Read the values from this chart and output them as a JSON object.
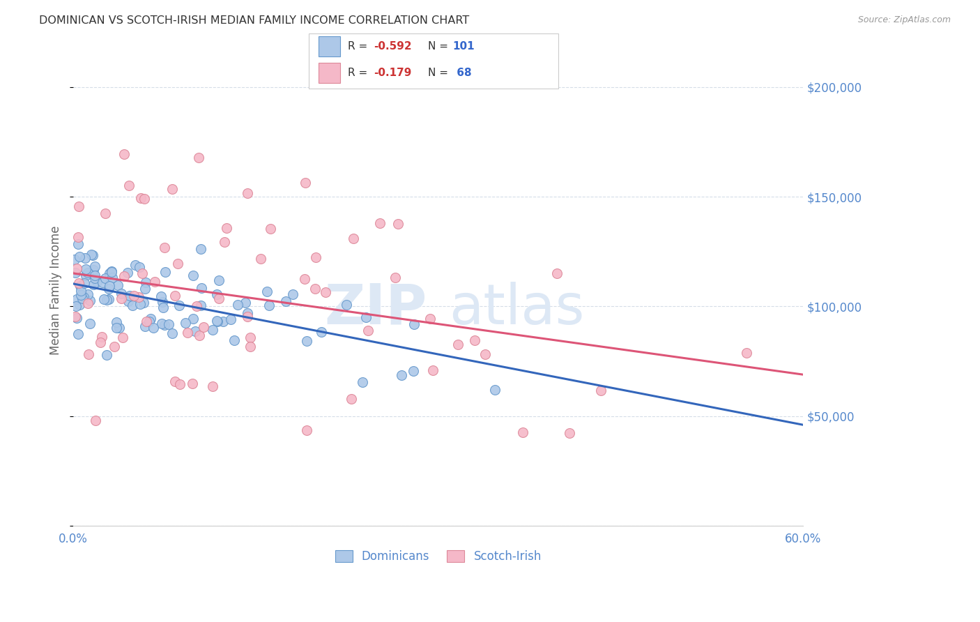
{
  "title": "DOMINICAN VS SCOTCH-IRISH MEDIAN FAMILY INCOME CORRELATION CHART",
  "source": "Source: ZipAtlas.com",
  "ylabel": "Median Family Income",
  "xlim": [
    0.0,
    0.6
  ],
  "ylim": [
    0,
    215000
  ],
  "series1_label": "Dominicans",
  "series1_fill_color": "#adc8e8",
  "series1_edge_color": "#6699cc",
  "series1_line_color": "#3366bb",
  "series1_R": -0.592,
  "series1_N": 101,
  "series1_intercept": 110000,
  "series1_slope": -110000,
  "series2_label": "Scotch-Irish",
  "series2_fill_color": "#f5b8c8",
  "series2_edge_color": "#dd8899",
  "series2_line_color": "#dd5577",
  "series2_R": -0.179,
  "series2_N": 68,
  "series2_intercept": 105000,
  "series2_slope": -42000,
  "background_color": "#ffffff",
  "grid_color": "#d5dde8",
  "title_color": "#333333",
  "axis_label_color": "#5588cc",
  "watermark_color": "#dde8f5",
  "legend_R_color": "#cc3333",
  "legend_N_color": "#3366cc",
  "legend_text_color": "#333333"
}
